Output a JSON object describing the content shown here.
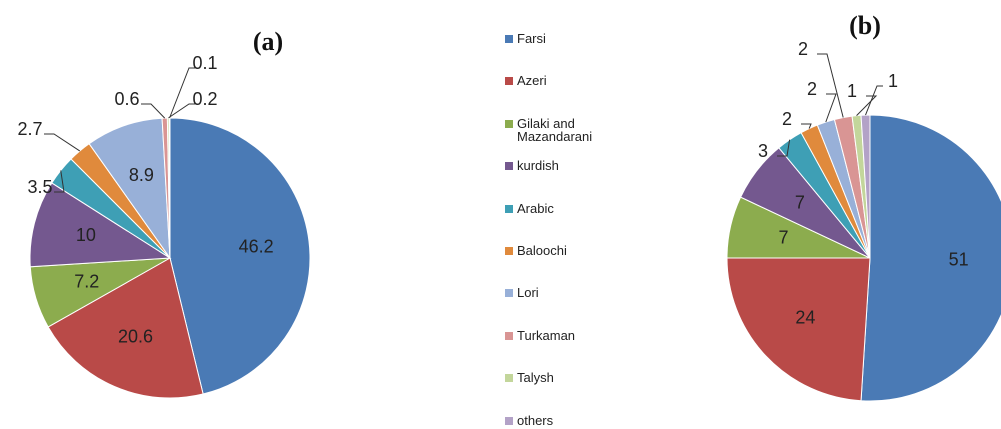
{
  "legend": {
    "categories": [
      "Farsi",
      "Azeri",
      "Gilaki and Mazandarani",
      "kurdish",
      "Arabic",
      "Baloochi",
      "Lori",
      "Turkaman",
      "Talysh",
      "others"
    ],
    "colors": [
      "#4a7ab5",
      "#b94a48",
      "#8cac4e",
      "#74588f",
      "#3e9fb5",
      "#e08a3c",
      "#98b0d8",
      "#d99594",
      "#c3d69b",
      "#b3a2c7"
    ]
  },
  "chart_data": [
    {
      "type": "pie",
      "title": "(a)",
      "values": [
        46.2,
        20.6,
        7.2,
        10,
        3.5,
        2.7,
        8.9,
        0.6,
        0.2,
        0.1
      ]
    },
    {
      "type": "pie",
      "title": "(b)",
      "values": [
        51,
        24,
        7,
        7,
        3,
        2,
        2,
        2,
        1,
        1
      ]
    }
  ]
}
